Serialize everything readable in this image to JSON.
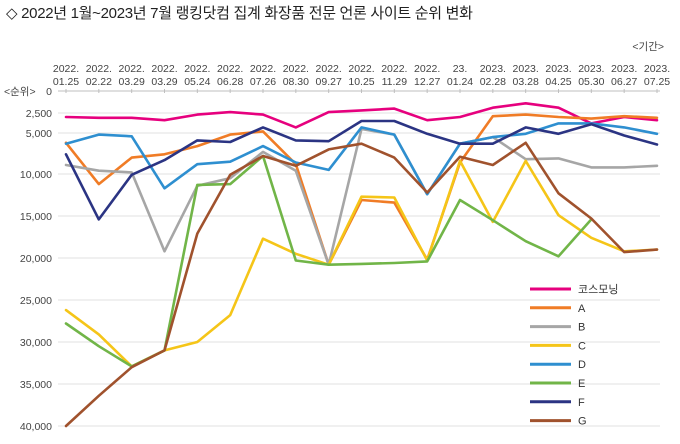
{
  "title": "◇ 2022년 1월~2023년 7월 랭킹닷컴 집계 화장품 전문 언론 사이트 순위 변화",
  "chart_data": {
    "type": "line",
    "title": "◇ 2022년 1월~2023년 7월 랭킹닷컴 집계 화장품 전문 언론 사이트 순위 변화",
    "xlabel": "<기간>",
    "ylabel": "<순위>",
    "y_reversed": true,
    "ylim": [
      0,
      40000
    ],
    "y_ticks": [
      "0",
      "2,500",
      "5,000",
      "10,000",
      "15,000",
      "20,000",
      "25,000",
      "30,000",
      "35,000",
      "40,000"
    ],
    "y_tick_values": [
      0,
      2500,
      5000,
      10000,
      15000,
      20000,
      25000,
      30000,
      35000,
      40000
    ],
    "x_ticks": [
      [
        "2022.",
        "01.25"
      ],
      [
        "2022.",
        "02.22"
      ],
      [
        "2022.",
        "03.29"
      ],
      [
        "2022.",
        "03.29"
      ],
      [
        "2022.",
        "05.24"
      ],
      [
        "2022.",
        "06.28"
      ],
      [
        "2022.",
        "07.26"
      ],
      [
        "2022.",
        "08.30"
      ],
      [
        "2022.",
        "09.27"
      ],
      [
        "2022.",
        "10.25"
      ],
      [
        "2022.",
        "11.29"
      ],
      [
        "2022.",
        "12.27"
      ],
      [
        "23.",
        "01.24"
      ],
      [
        "2023.",
        "02.28"
      ],
      [
        "2023.",
        "03.28"
      ],
      [
        "2023.",
        "04.25"
      ],
      [
        "2023.",
        "05.30"
      ],
      [
        "2023.",
        "06.27"
      ],
      [
        "2023.",
        "07.25"
      ]
    ],
    "grid": true,
    "legend_position": "bottom-right",
    "series": [
      {
        "name": "코스모닝",
        "color": "#e6007e",
        "values": [
          3000,
          3100,
          3100,
          3400,
          2700,
          2400,
          2700,
          4300,
          2400,
          2200,
          2000,
          3400,
          3000,
          1900,
          1400,
          1900,
          3800,
          3000,
          3400
        ]
      },
      {
        "name": "A",
        "color": "#f07c26",
        "values": [
          6200,
          11200,
          8000,
          7600,
          6600,
          5200,
          4800,
          8800,
          20800,
          13100,
          13400,
          20200,
          8600,
          2900,
          2700,
          3000,
          3200,
          2900,
          3100
        ]
      },
      {
        "name": "B",
        "color": "#a6a6a6",
        "values": [
          8900,
          9600,
          9800,
          19200,
          11400,
          10500,
          7300,
          9600,
          20800,
          4500,
          5200,
          12400,
          6300,
          5500,
          8200,
          8100,
          9200,
          9200,
          9000
        ]
      },
      {
        "name": "C",
        "color": "#f5c518",
        "values": [
          26200,
          29100,
          32900,
          31000,
          30000,
          26800,
          17700,
          19500,
          20800,
          12700,
          12800,
          20300,
          8400,
          15700,
          8400,
          14900,
          17600,
          19200,
          19000
        ]
      },
      {
        "name": "D",
        "color": "#2e8fd0",
        "values": [
          6300,
          5200,
          5400,
          11700,
          8800,
          8500,
          6600,
          8600,
          9500,
          4300,
          5200,
          12400,
          6300,
          5500,
          5100,
          3800,
          3800,
          4300,
          5100
        ]
      },
      {
        "name": "E",
        "color": "#71b548",
        "values": [
          27800,
          30500,
          32900,
          31000,
          11300,
          11200,
          7800,
          20300,
          20800,
          20700,
          20600,
          20400,
          13100,
          15500,
          18000,
          19800,
          15400,
          null,
          null
        ]
      },
      {
        "name": "F",
        "color": "#2b3483",
        "values": [
          7600,
          15400,
          10100,
          8300,
          5900,
          6100,
          4300,
          5900,
          6000,
          3500,
          3500,
          5100,
          6300,
          6300,
          4300,
          5100,
          3900,
          5300,
          6400
        ]
      },
      {
        "name": "G",
        "color": "#a0522d",
        "values": [
          40000,
          36400,
          33000,
          31000,
          17100,
          10100,
          7800,
          9000,
          7000,
          6300,
          8000,
          12200,
          7900,
          8900,
          6200,
          12300,
          15300,
          19300,
          19000
        ]
      }
    ]
  }
}
